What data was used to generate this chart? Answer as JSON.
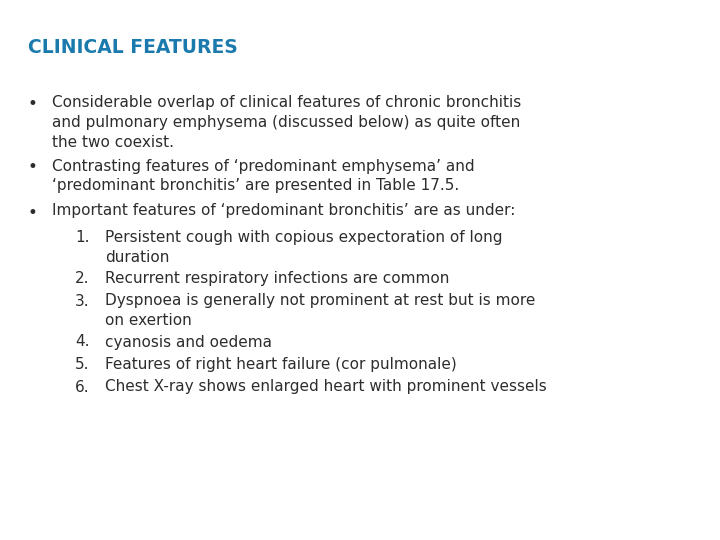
{
  "title": "CLINICAL FEATURES",
  "title_color": "#1a7aad",
  "title_fontsize": 13.5,
  "background_color": "#ffffff",
  "text_color": "#2d2d2d",
  "body_fontsize": 11.0,
  "bullets": [
    {
      "type": "bullet",
      "text": "Considerable overlap of clinical features of chronic bronchitis\nand pulmonary emphysema (discussed below) as quite often\nthe two coexist."
    },
    {
      "type": "bullet",
      "text": "Contrasting features of ‘predominant emphysema’ and\n‘predominant bronchitis’ are presented in Table 17.5."
    },
    {
      "type": "bullet",
      "text": "Important features of ‘predominant bronchitis’ are as under:"
    },
    {
      "type": "numbered",
      "number": "1.",
      "text": "Persistent cough with copious expectoration of long\nduration"
    },
    {
      "type": "numbered",
      "number": "2.",
      "text": "Recurrent respiratory infections are common"
    },
    {
      "type": "numbered",
      "number": "3.",
      "text": "Dyspnoea is generally not prominent at rest but is more\non exertion"
    },
    {
      "type": "numbered",
      "number": "4.",
      "text": "cyanosis and oedema"
    },
    {
      "type": "numbered",
      "number": "5.",
      "text": "Features of right heart failure (cor pulmonale)"
    },
    {
      "type": "numbered",
      "number": "6.",
      "text": "Chest X-ray shows enlarged heart with prominent vessels"
    }
  ]
}
